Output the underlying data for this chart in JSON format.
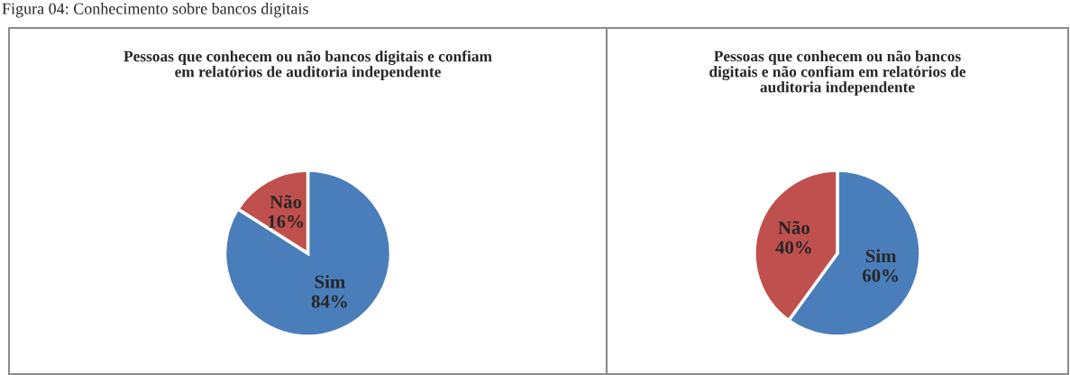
{
  "chart_data": [
    {
      "type": "pie",
      "title": "Pessoas que conhecem ou não bancos digitais e confiam\nem relatórios de auditoria independente",
      "categories": [
        "Sim",
        "Não"
      ],
      "values": [
        84,
        16
      ],
      "value_labels": [
        "84%",
        "16%"
      ],
      "colors": [
        "#4a7ebb",
        "#c0504d"
      ],
      "legend": false,
      "annotations": [
        "Figura 04: Conhecimento sobre bancos digitais"
      ]
    },
    {
      "type": "pie",
      "title": "Pessoas que conhecem ou não bancos\ndigitais e não confiam em relatórios de\nauditoria independente",
      "categories": [
        "Sim",
        "Não"
      ],
      "values": [
        60,
        40
      ],
      "value_labels": [
        "60%",
        "40%"
      ],
      "colors": [
        "#4a7ebb",
        "#c0504d"
      ],
      "legend": false
    }
  ]
}
